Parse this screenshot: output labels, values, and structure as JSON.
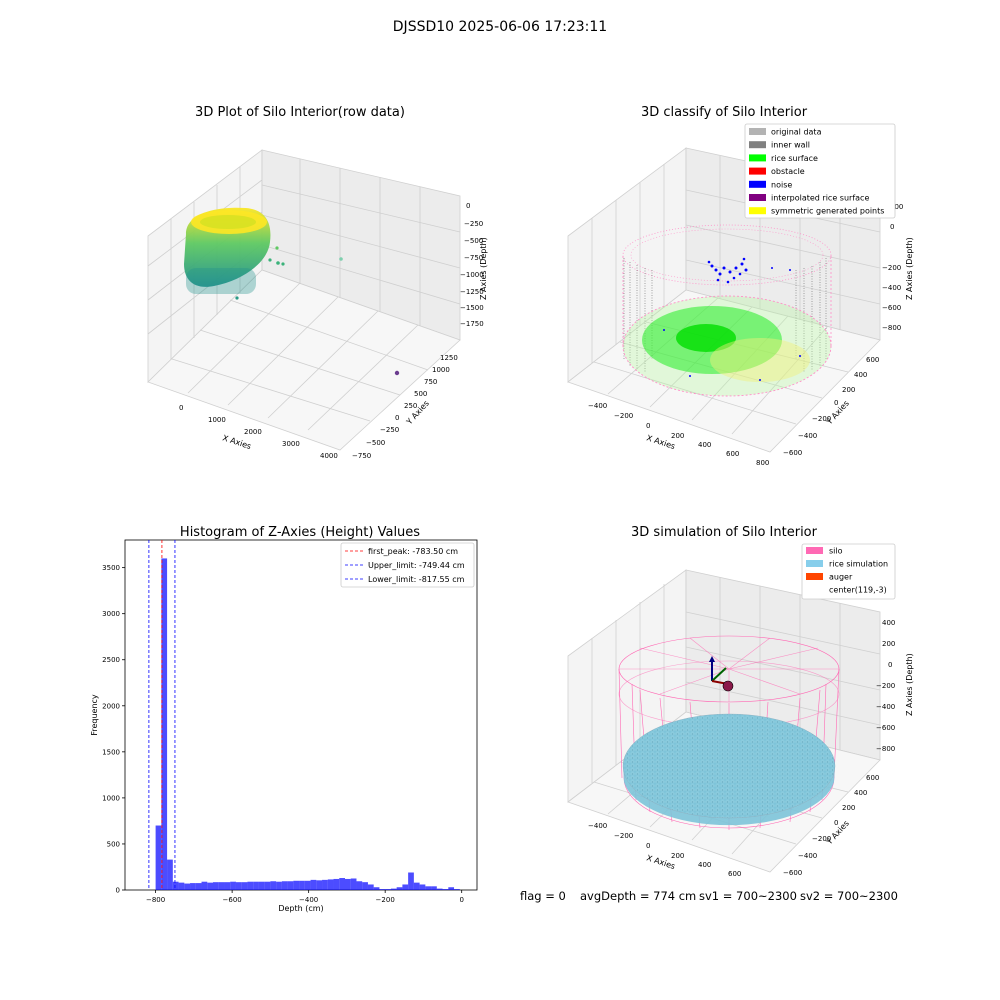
{
  "figure_title": "DJSSD10 2025-06-06 17:23:11",
  "footer": {
    "flag": "flag = 0",
    "avg_depth": "avgDepth = 774 cm",
    "sv1": "sv1 = 700~2300",
    "sv2": "sv2 = 700~2300"
  },
  "chart_data": [
    {
      "type": "scatter",
      "title": "3D Plot of Silo Interior(row data)",
      "xlabel": "X Axies",
      "ylabel": "Y Axies",
      "zlabel": "Z Axies (Depth)",
      "x_ticks": [
        "0",
        "1000",
        "2000",
        "3000",
        "4000"
      ],
      "y_ticks": [
        "−750",
        "−500",
        "−250",
        "0",
        "250",
        "500",
        "750",
        "1000",
        "1250"
      ],
      "z_ticks": [
        "0",
        "−250",
        "−500",
        "−750",
        "−1000",
        "−1250",
        "−1500",
        "−1750"
      ],
      "colormap": [
        "#440154",
        "#21918c",
        "#5ec962",
        "#fde725"
      ]
    },
    {
      "type": "scatter",
      "title": "3D classify of Silo Interior",
      "xlabel": "X Axies",
      "ylabel": "Y Axies",
      "zlabel": "Z Axies (Depth)",
      "x_ticks": [
        "−400",
        "−200",
        "0",
        "200",
        "400",
        "600",
        "800"
      ],
      "y_ticks": [
        "−600",
        "−400",
        "−200",
        "0",
        "200",
        "400",
        "600"
      ],
      "z_ticks": [
        "200",
        "0",
        "−200",
        "−400",
        "−600",
        "−800"
      ],
      "legend": [
        {
          "label": "original data",
          "color": "#b3b3b3"
        },
        {
          "label": "inner wall",
          "color": "#808080"
        },
        {
          "label": "rice surface",
          "color": "#00ff00"
        },
        {
          "label": "obstacle",
          "color": "#ff0000"
        },
        {
          "label": "noise",
          "color": "#0000ff"
        },
        {
          "label": "interpolated rice surface",
          "color": "#800080"
        },
        {
          "label": "symmetric generated points",
          "color": "#ffff00"
        }
      ],
      "legend_position": "upper-right"
    },
    {
      "type": "bar",
      "title": "Histogram of Z-Axies (Height) Values",
      "xlabel": "Depth (cm)",
      "ylabel": "Frequency",
      "xlim": [
        -880,
        40
      ],
      "ylim": [
        0,
        3800
      ],
      "bin_width": 15,
      "x_ticks": [
        -800,
        -600,
        -400,
        -200,
        0
      ],
      "y_ticks": [
        0,
        500,
        1000,
        1500,
        2000,
        2500,
        3000,
        3500
      ],
      "bar_color": "#0000ff",
      "bins": [
        {
          "x": -800,
          "y": 700
        },
        {
          "x": -785,
          "y": 3600
        },
        {
          "x": -770,
          "y": 330
        },
        {
          "x": -755,
          "y": 90
        },
        {
          "x": -740,
          "y": 80
        },
        {
          "x": -725,
          "y": 70
        },
        {
          "x": -710,
          "y": 75
        },
        {
          "x": -695,
          "y": 75
        },
        {
          "x": -680,
          "y": 90
        },
        {
          "x": -665,
          "y": 80
        },
        {
          "x": -650,
          "y": 85
        },
        {
          "x": -635,
          "y": 85
        },
        {
          "x": -620,
          "y": 85
        },
        {
          "x": -605,
          "y": 90
        },
        {
          "x": -590,
          "y": 85
        },
        {
          "x": -575,
          "y": 85
        },
        {
          "x": -560,
          "y": 90
        },
        {
          "x": -545,
          "y": 90
        },
        {
          "x": -530,
          "y": 90
        },
        {
          "x": -515,
          "y": 90
        },
        {
          "x": -500,
          "y": 95
        },
        {
          "x": -485,
          "y": 90
        },
        {
          "x": -470,
          "y": 95
        },
        {
          "x": -455,
          "y": 95
        },
        {
          "x": -440,
          "y": 100
        },
        {
          "x": -425,
          "y": 100
        },
        {
          "x": -410,
          "y": 100
        },
        {
          "x": -395,
          "y": 110
        },
        {
          "x": -380,
          "y": 105
        },
        {
          "x": -365,
          "y": 110
        },
        {
          "x": -350,
          "y": 115
        },
        {
          "x": -335,
          "y": 120
        },
        {
          "x": -320,
          "y": 130
        },
        {
          "x": -305,
          "y": 120
        },
        {
          "x": -290,
          "y": 125
        },
        {
          "x": -275,
          "y": 95
        },
        {
          "x": -260,
          "y": 85
        },
        {
          "x": -245,
          "y": 60
        },
        {
          "x": -230,
          "y": 30
        },
        {
          "x": -215,
          "y": 10
        },
        {
          "x": -200,
          "y": 10
        },
        {
          "x": -185,
          "y": 15
        },
        {
          "x": -170,
          "y": 30
        },
        {
          "x": -155,
          "y": 60
        },
        {
          "x": -140,
          "y": 190
        },
        {
          "x": -125,
          "y": 80
        },
        {
          "x": -110,
          "y": 60
        },
        {
          "x": -95,
          "y": 40
        },
        {
          "x": -80,
          "y": 40
        },
        {
          "x": -65,
          "y": 15
        },
        {
          "x": -50,
          "y": 10
        },
        {
          "x": -35,
          "y": 30
        },
        {
          "x": -20,
          "y": 10
        }
      ],
      "vlines": [
        {
          "label": "first_peak: -783.50 cm",
          "x": -783.5,
          "color": "#ff0000"
        },
        {
          "label": "Upper_limit: -749.44 cm",
          "x": -749.44,
          "color": "#0000ff"
        },
        {
          "label": "Lower_limit: -817.55 cm",
          "x": -817.55,
          "color": "#0000ff"
        }
      ],
      "legend_position": "upper-right"
    },
    {
      "type": "scatter",
      "title": "3D simulation of Silo Interior",
      "xlabel": "X Axies",
      "ylabel": "Y Axies",
      "zlabel": "Z Axies (Depth)",
      "x_ticks": [
        "−400",
        "−200",
        "0",
        "200",
        "400",
        "600"
      ],
      "y_ticks": [
        "−600",
        "−400",
        "−200",
        "0",
        "200",
        "400",
        "600"
      ],
      "z_ticks": [
        "400",
        "200",
        "0",
        "−200",
        "−400",
        "−600",
        "−800"
      ],
      "legend": [
        {
          "label": "silo",
          "color": "#ff69b4"
        },
        {
          "label": "rice simulation",
          "color": "#87ceeb"
        },
        {
          "label": "auger",
          "color": "#ff4500"
        },
        {
          "label": "center(119,-3)",
          "color": "#ffffff"
        }
      ],
      "legend_position": "upper-right"
    }
  ]
}
